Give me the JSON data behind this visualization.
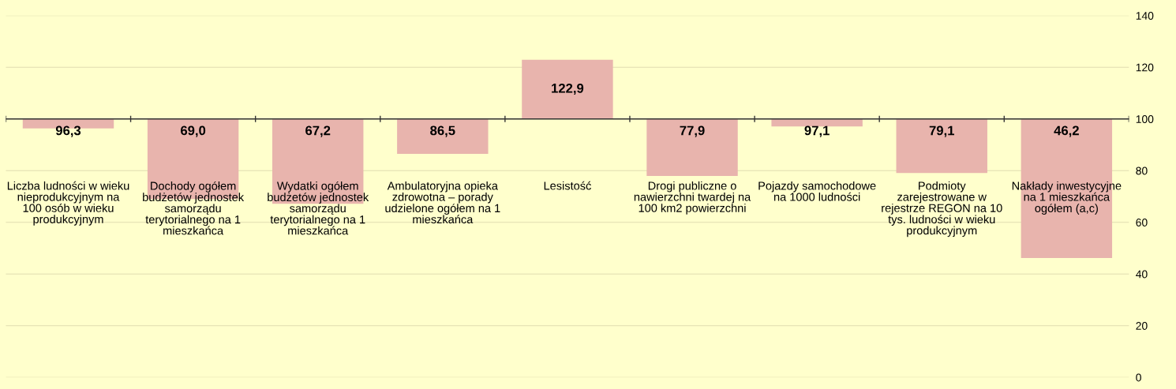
{
  "chart_data": {
    "type": "bar",
    "categories": [
      "Liczba ludności w wieku\nnieprodukcyjnym na\n100 osób w wieku\nprodukcyjnym",
      "Dochody ogółem\nbudżetów jednostek\nsamorządu\nterytorialnego na 1\nmieszkańca",
      "Wydatki ogółem\nbudżetów jednostek\nsamorządu\nterytorialnego na 1\nmieszkańca",
      "Ambulatoryjna opieka\nzdrowotna – porady\nudzielone ogółem na 1\nmieszkańca",
      "Lesistość",
      "Drogi publiczne o\nnawierzchni twardej na\n100 km2 powierzchni",
      "Pojazdy samochodowe\nna 1000 ludności",
      "Podmioty\nzarejestrowane w\nrejestrze REGON na 10\ntys. ludności w wieku\nprodukcyjnym",
      "Nakłady inwestycyjne\nna 1 mieszkańca\nogółem (a,c)"
    ],
    "base": [
      100,
      100,
      100,
      100,
      100,
      100,
      100,
      100,
      100
    ],
    "values": [
      -3.7,
      -31.0,
      -32.8,
      -13.5,
      22.9,
      -22.1,
      -2.9,
      -20.9,
      -53.8
    ],
    "value_labels": [
      "96,3",
      "69,0",
      "67,2",
      "86,5",
      "122,9",
      "77,9",
      "97,1",
      "79,1",
      "46,2"
    ],
    "color": "#e8b4ad",
    "ylim": [
      0,
      140
    ],
    "yticks": [
      0,
      20,
      40,
      60,
      80,
      100,
      120,
      140
    ],
    "ref_lines": [
      {
        "axis": "y",
        "value": 100,
        "color": "#333333"
      }
    ],
    "grid": "y"
  }
}
